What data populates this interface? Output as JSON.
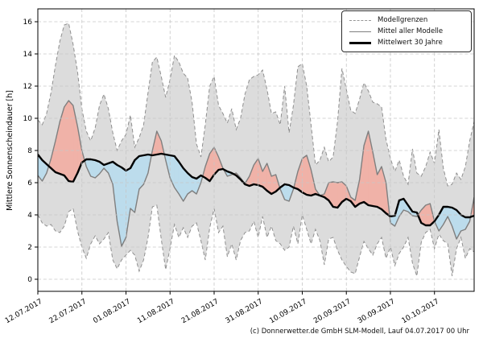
{
  "caption": "(c) Donnerwetter.de GmbH SLM-Modell, Lauf 04.07.2017 00 Uhr",
  "chart_data": {
    "type": "line",
    "title": "",
    "ylabel": "Mittlere Sonnenscheindauer [h]",
    "xlabel": "",
    "grid": true,
    "legend_position": "upper right",
    "x_tick_labels": [
      "12.07.2017",
      "22.07.2017",
      "01.08.2017",
      "11.08.2017",
      "21.08.2017",
      "31.08.2017",
      "10.09.2017",
      "20.09.2017",
      "30.09.2017",
      "10.10.2017"
    ],
    "x_tick_days": [
      0,
      10,
      20,
      30,
      40,
      50,
      60,
      70,
      80,
      90
    ],
    "y_ticks": [
      0,
      2,
      4,
      6,
      8,
      10,
      12,
      14,
      16
    ],
    "ylim": [
      -0.75,
      16.8
    ],
    "x_total_days": 99,
    "legend": [
      {
        "label": "Modellgrenzen",
        "style": "dashed-gray"
      },
      {
        "label": "Mittel aller Modelle",
        "style": "solid-gray"
      },
      {
        "label": "Mittelwert 30 Jahre",
        "style": "solid-black-thick"
      }
    ],
    "colors": {
      "envelope_fill": "#dcdcdc",
      "boundary_line": "#8f8f8f",
      "model_mean_line": "#7f7f7f",
      "mean30_line": "#000000",
      "above_fill": "#f0b2a8",
      "below_fill": "#bcdcec",
      "grid_line": "#c6c6c6",
      "spine": "#000000"
    },
    "series": [
      {
        "name": "Modellgrenzen oben",
        "values": [
          9.9,
          9.6,
          10.3,
          11.6,
          13.3,
          14.8,
          15.8,
          15.9,
          14.6,
          12.9,
          10.6,
          9.2,
          8.6,
          9.4,
          10.8,
          11.5,
          10.6,
          9.1,
          8.0,
          8.6,
          9.0,
          10.2,
          8.2,
          8.8,
          9.6,
          11.6,
          13.5,
          13.8,
          12.6,
          11.3,
          12.4,
          13.9,
          13.5,
          12.8,
          12.5,
          11.0,
          8.4,
          7.6,
          9.6,
          12.0,
          12.6,
          10.8,
          10.3,
          9.7,
          10.6,
          9.3,
          10.0,
          11.5,
          12.4,
          12.6,
          12.7,
          13.0,
          11.8,
          10.3,
          10.4,
          9.6,
          12.0,
          9.1,
          10.8,
          13.2,
          13.4,
          12.0,
          9.6,
          7.1,
          7.4,
          8.2,
          7.3,
          7.6,
          9.8,
          13.1,
          11.8,
          10.5,
          10.3,
          11.2,
          12.2,
          11.7,
          11.0,
          10.9,
          10.7,
          8.7,
          7.5,
          6.7,
          7.4,
          6.4,
          5.9,
          8.1,
          6.6,
          6.4,
          7.0,
          7.9,
          7.2,
          9.3,
          6.9,
          5.8,
          5.9,
          6.6,
          6.2,
          7.0,
          8.6,
          9.8
        ]
      },
      {
        "name": "Modellgrenzen unten",
        "values": [
          4.0,
          3.5,
          3.3,
          3.4,
          3.0,
          2.9,
          3.3,
          4.2,
          4.4,
          3.0,
          2.0,
          1.3,
          2.2,
          2.7,
          2.2,
          2.5,
          2.9,
          1.2,
          0.65,
          1.2,
          1.5,
          1.8,
          1.5,
          0.5,
          1.2,
          2.6,
          4.5,
          4.6,
          2.5,
          0.6,
          1.9,
          3.4,
          2.6,
          3.2,
          2.6,
          3.3,
          3.5,
          2.4,
          1.2,
          3.2,
          4.4,
          2.9,
          3.3,
          1.4,
          2.2,
          1.2,
          2.4,
          2.9,
          3.0,
          3.6,
          2.6,
          3.9,
          2.6,
          3.3,
          2.4,
          2.2,
          1.8,
          2.0,
          3.3,
          2.2,
          4.0,
          3.1,
          2.2,
          3.1,
          2.4,
          0.9,
          2.5,
          2.6,
          1.8,
          1.2,
          0.8,
          0.45,
          0.35,
          1.4,
          2.35,
          1.9,
          1.5,
          2.2,
          2.6,
          1.3,
          2.0,
          0.85,
          1.6,
          2.0,
          2.6,
          1.0,
          0.2,
          2.3,
          2.9,
          3.1,
          1.9,
          2.8,
          2.4,
          2.2,
          0.2,
          1.9,
          2.6,
          1.3,
          1.9,
          1.7
        ]
      },
      {
        "name": "Mittel aller Modelle",
        "values": [
          6.45,
          6.1,
          6.6,
          7.5,
          8.6,
          9.8,
          10.7,
          11.1,
          10.8,
          9.5,
          8.0,
          7.0,
          6.4,
          6.3,
          6.55,
          6.9,
          6.6,
          5.9,
          3.6,
          2.05,
          2.6,
          4.4,
          4.15,
          5.6,
          5.9,
          6.6,
          8.0,
          9.2,
          8.6,
          7.4,
          6.3,
          5.7,
          5.3,
          4.85,
          5.3,
          5.5,
          5.3,
          6.0,
          7.0,
          7.8,
          8.2,
          7.6,
          6.9,
          6.4,
          6.5,
          6.6,
          6.3,
          5.95,
          6.4,
          7.1,
          7.5,
          6.7,
          7.2,
          6.4,
          6.5,
          5.6,
          4.95,
          4.85,
          5.6,
          6.7,
          7.5,
          7.7,
          6.8,
          5.6,
          5.2,
          5.3,
          6.0,
          6.05,
          6.0,
          6.05,
          5.8,
          5.1,
          4.9,
          6.2,
          8.3,
          9.2,
          7.9,
          6.5,
          7.0,
          6.0,
          3.5,
          3.3,
          3.9,
          4.3,
          4.2,
          3.95,
          3.9,
          4.3,
          4.6,
          4.7,
          3.6,
          3.0,
          3.4,
          3.9,
          3.3,
          2.5,
          3.0,
          3.1,
          3.6,
          5.1
        ]
      },
      {
        "name": "Mittelwert 30 Jahre",
        "values": [
          7.75,
          7.4,
          7.15,
          6.9,
          6.65,
          6.55,
          6.45,
          6.1,
          6.05,
          6.6,
          7.25,
          7.45,
          7.45,
          7.4,
          7.3,
          7.1,
          7.2,
          7.3,
          7.1,
          6.95,
          6.75,
          6.9,
          7.4,
          7.65,
          7.7,
          7.75,
          7.7,
          7.75,
          7.8,
          7.75,
          7.7,
          7.65,
          7.3,
          6.9,
          6.6,
          6.35,
          6.25,
          6.45,
          6.3,
          6.1,
          6.5,
          6.8,
          6.85,
          6.7,
          6.6,
          6.45,
          6.2,
          5.9,
          5.8,
          5.9,
          5.85,
          5.75,
          5.5,
          5.3,
          5.45,
          5.7,
          5.9,
          5.85,
          5.7,
          5.6,
          5.4,
          5.25,
          5.2,
          5.3,
          5.2,
          5.1,
          4.9,
          4.5,
          4.45,
          4.8,
          5.0,
          4.85,
          4.5,
          4.7,
          4.8,
          4.6,
          4.55,
          4.5,
          4.35,
          4.1,
          3.9,
          3.95,
          4.9,
          5.0,
          4.6,
          4.2,
          4.15,
          3.5,
          3.35,
          3.35,
          3.6,
          4.0,
          4.5,
          4.5,
          4.45,
          4.3,
          4.0,
          3.85,
          3.85,
          3.95
        ]
      }
    ]
  }
}
